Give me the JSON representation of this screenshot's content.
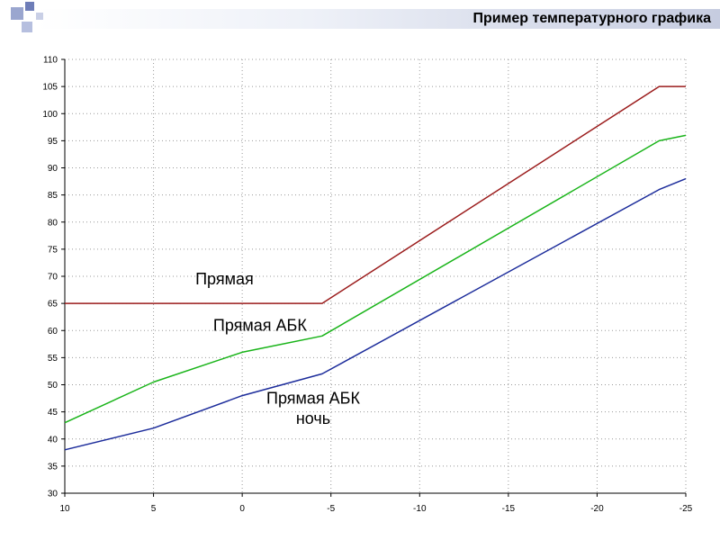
{
  "page": {
    "title": "Пример температурного графика"
  },
  "chart_data": {
    "type": "line",
    "title": "",
    "xlabel": "",
    "ylabel": "",
    "xlim": [
      10,
      -25
    ],
    "ylim": [
      30,
      110
    ],
    "x_ticks": [
      10,
      5,
      0,
      -5,
      -10,
      -15,
      -20,
      -25
    ],
    "y_ticks": [
      30,
      35,
      40,
      45,
      50,
      55,
      60,
      65,
      70,
      75,
      80,
      85,
      90,
      95,
      100,
      105,
      110
    ],
    "grid": true,
    "legend": "none",
    "series": [
      {
        "name": "Прямая",
        "color": "#9b1c1c",
        "x": [
          10,
          -4.5,
          -23.5,
          -25
        ],
        "y": [
          65,
          65,
          105,
          105
        ]
      },
      {
        "name": "Прямая АБК",
        "color": "#19b419",
        "x": [
          10,
          5,
          0,
          -4.5,
          -23.5,
          -25
        ],
        "y": [
          43,
          50.5,
          56,
          59,
          95,
          96
        ]
      },
      {
        "name": "Прямая АБК ночь",
        "color": "#1c2c9b",
        "x": [
          10,
          5,
          0,
          -4.5,
          -23.5,
          -25
        ],
        "y": [
          38,
          42,
          48,
          52,
          86,
          88
        ]
      }
    ],
    "annotations": [
      {
        "lines": [
          "Прямая"
        ],
        "x": 1,
        "y": 68.5
      },
      {
        "lines": [
          "Прямая АБК"
        ],
        "x": -1,
        "y": 60
      },
      {
        "lines": [
          "Прямая АБК",
          "ночь"
        ],
        "x": -4,
        "y": 46.5
      }
    ],
    "colors": {
      "grid": "#999999",
      "axis": "#000000"
    }
  }
}
